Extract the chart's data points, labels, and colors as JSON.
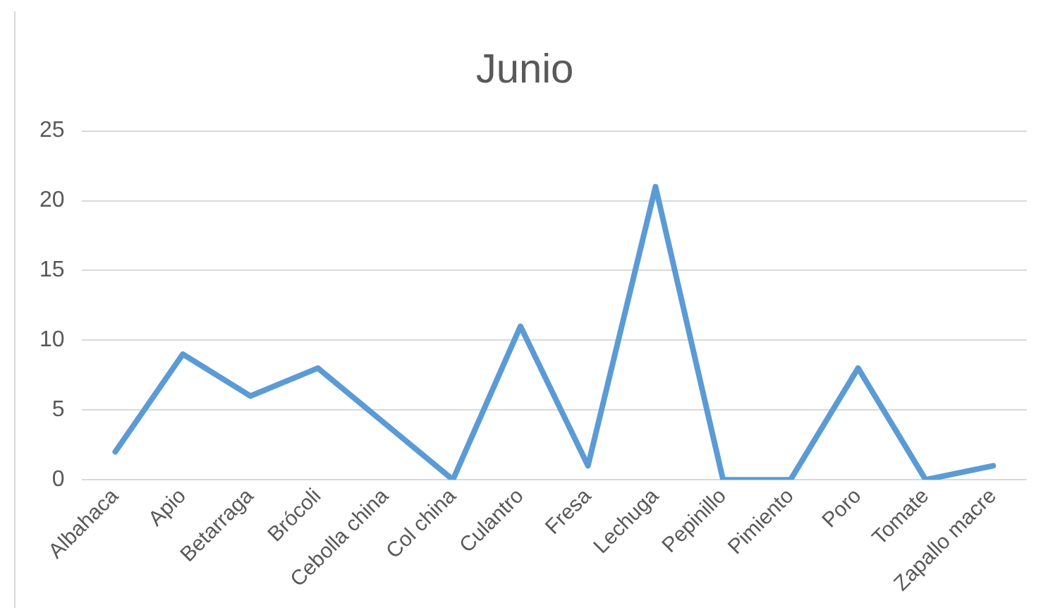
{
  "chart_data": {
    "type": "line",
    "title": "Junio",
    "categories": [
      "Albahaca",
      "Apio",
      "Betarraga",
      "Brócoli",
      "Cebolla china",
      "Col china",
      "Culantro",
      "Fresa",
      "Lechuga",
      "Pepinillo",
      "Pimiento",
      "Poro",
      "Tomate",
      "Zapallo macre"
    ],
    "series": [
      {
        "color": "#5b9bd5",
        "values": [
          2,
          9,
          6,
          8,
          4,
          0,
          11,
          1,
          21,
          0,
          0,
          8,
          0,
          1
        ]
      }
    ],
    "ylim": [
      0,
      25
    ],
    "yticks": [
      0,
      5,
      10,
      15,
      20,
      25
    ],
    "grid": "y",
    "legend": false,
    "marker": "none",
    "line_style": "solid"
  }
}
